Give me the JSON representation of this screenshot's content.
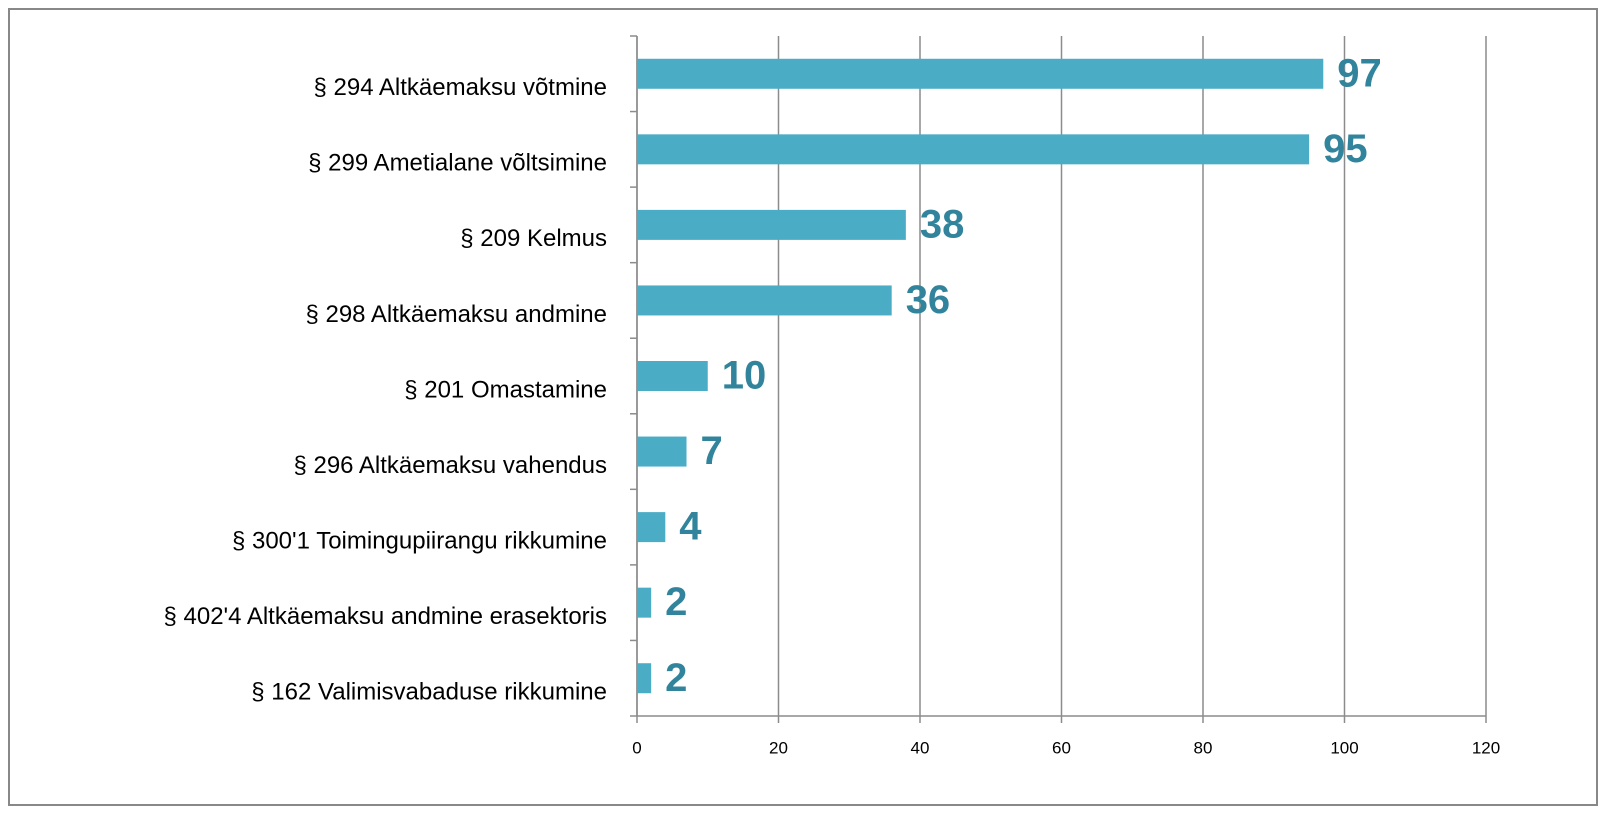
{
  "chart_data": {
    "type": "bar",
    "orientation": "horizontal",
    "categories": [
      "§ 294 Altkäemaksu võtmine",
      "§ 299 Ametialane võltsimine",
      "§ 209 Kelmus",
      "§ 298 Altkäemaksu andmine",
      "§ 201 Omastamine",
      "§ 296 Altkäemaksu vahendus",
      "§ 300'1 Toimingupiirangu rikkumine",
      "§ 402'4 Altkäemaksu andmine erasektoris",
      "§ 162 Valimisvabaduse rikkumine"
    ],
    "values": [
      97,
      95,
      38,
      36,
      10,
      7,
      4,
      2,
      2
    ],
    "color": "#4bacc6",
    "value_label_color": "#31849b",
    "xlim": [
      0,
      120
    ],
    "xticks": [
      0,
      20,
      40,
      60,
      80,
      100,
      120
    ],
    "grid": true
  }
}
